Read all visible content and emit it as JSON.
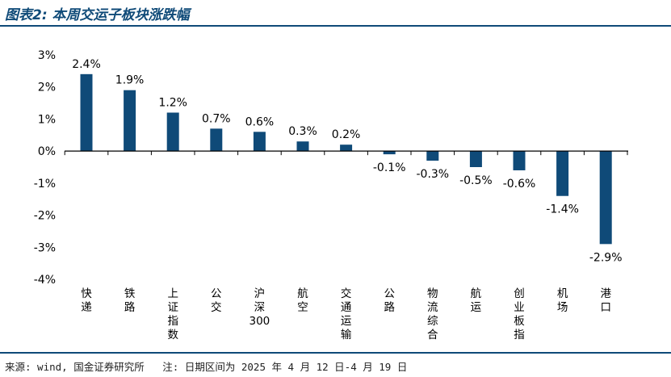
{
  "header": {
    "title": "图表2: 本周交运子板块涨跌幅"
  },
  "footer": {
    "source": "来源: wind, 国金证券研究所",
    "note": "注: 日期区间为 2025 年 4 月 12 日-4 月 19 日"
  },
  "colors": {
    "bar": "#0f4a78",
    "axis": "#000000",
    "rule": "#0f4a78"
  },
  "chart_data": {
    "type": "bar",
    "title": "",
    "xlabel": "",
    "ylabel": "",
    "categories": [
      "快递",
      "铁路",
      "上证指数",
      "公交",
      "沪深300",
      "航空",
      "交通运输",
      "公路",
      "物流综合",
      "航运",
      "创业板指",
      "机场",
      "港口"
    ],
    "values": [
      2.4,
      1.9,
      1.2,
      0.7,
      0.6,
      0.3,
      0.2,
      -0.1,
      -0.3,
      -0.5,
      -0.6,
      -1.4,
      -2.9
    ],
    "data_labels": [
      "2.4%",
      "1.9%",
      "1.2%",
      "0.7%",
      "0.6%",
      "0.3%",
      "0.2%",
      "-0.1%",
      "-0.3%",
      "-0.5%",
      "-0.6%",
      "-1.4%",
      "-2.9%"
    ],
    "ylim": [
      -4,
      3
    ],
    "yticks": [
      3,
      2,
      1,
      0,
      -1,
      -2,
      -3,
      -4
    ],
    "ytick_labels": [
      "3%",
      "2%",
      "1%",
      "0%",
      "-1%",
      "-2%",
      "-3%",
      "-4%"
    ],
    "grid": false,
    "legend": "none"
  }
}
